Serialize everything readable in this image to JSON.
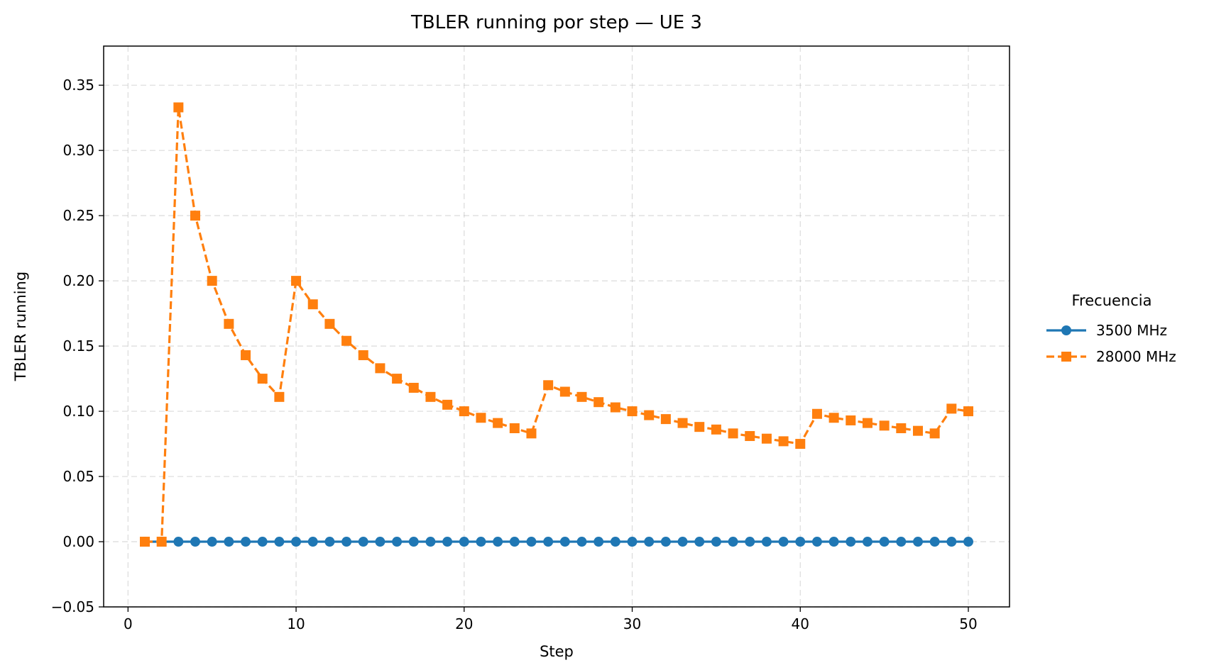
{
  "chart_data": {
    "type": "line",
    "title": "TBLER running por step — UE 3",
    "xlabel": "Step",
    "ylabel": "TBLER running",
    "xlim": [
      -1.45,
      52.45
    ],
    "ylim": [
      -0.05,
      0.38
    ],
    "xticks": [
      0,
      10,
      20,
      30,
      40,
      50
    ],
    "xtick_labels": [
      "0",
      "10",
      "20",
      "30",
      "40",
      "50"
    ],
    "yticks": [
      -0.05,
      0.0,
      0.05,
      0.1,
      0.15,
      0.2,
      0.25,
      0.3,
      0.35
    ],
    "ytick_labels": [
      "−0.05",
      "0.00",
      "0.05",
      "0.10",
      "0.15",
      "0.20",
      "0.25",
      "0.30",
      "0.35"
    ],
    "grid": true,
    "legend": {
      "title": "Frecuencia",
      "placement": "outside-right"
    },
    "x": [
      1,
      2,
      3,
      4,
      5,
      6,
      7,
      8,
      9,
      10,
      11,
      12,
      13,
      14,
      15,
      16,
      17,
      18,
      19,
      20,
      21,
      22,
      23,
      24,
      25,
      26,
      27,
      28,
      29,
      30,
      31,
      32,
      33,
      34,
      35,
      36,
      37,
      38,
      39,
      40,
      41,
      42,
      43,
      44,
      45,
      46,
      47,
      48,
      49,
      50
    ],
    "series": [
      {
        "name": "3500 MHz",
        "color": "#1f77b4",
        "marker": "circle",
        "linestyle": "solid",
        "values": [
          0,
          0,
          0,
          0,
          0,
          0,
          0,
          0,
          0,
          0,
          0,
          0,
          0,
          0,
          0,
          0,
          0,
          0,
          0,
          0,
          0,
          0,
          0,
          0,
          0,
          0,
          0,
          0,
          0,
          0,
          0,
          0,
          0,
          0,
          0,
          0,
          0,
          0,
          0,
          0,
          0,
          0,
          0,
          0,
          0,
          0,
          0,
          0,
          0,
          0
        ]
      },
      {
        "name": "28000 MHz",
        "color": "#ff7f0e",
        "marker": "square",
        "linestyle": "dashed",
        "values": [
          0.0,
          0.0,
          0.333,
          0.25,
          0.2,
          0.167,
          0.143,
          0.125,
          0.111,
          0.2,
          0.182,
          0.167,
          0.154,
          0.143,
          0.133,
          0.125,
          0.118,
          0.111,
          0.105,
          0.1,
          0.095,
          0.091,
          0.087,
          0.083,
          0.12,
          0.115,
          0.111,
          0.107,
          0.103,
          0.1,
          0.097,
          0.094,
          0.091,
          0.088,
          0.086,
          0.083,
          0.081,
          0.079,
          0.077,
          0.075,
          0.098,
          0.095,
          0.093,
          0.091,
          0.089,
          0.087,
          0.085,
          0.083,
          0.102,
          0.1
        ]
      }
    ]
  }
}
